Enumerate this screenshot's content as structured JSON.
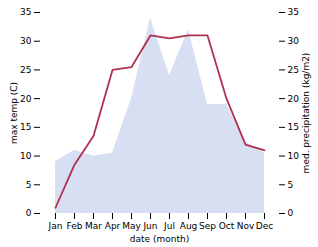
{
  "chart_data": {
    "type": "line",
    "categories": [
      "Jan",
      "Feb",
      "Mar",
      "Apr",
      "May",
      "Jun",
      "Jul",
      "Aug",
      "Sep",
      "Oct",
      "Nov",
      "Dec"
    ],
    "series": [
      {
        "type": "area",
        "color": "#b8c4e8",
        "axis": "y2",
        "values": [
          9.0,
          11.0,
          10.0,
          10.5,
          20.0,
          34.0,
          24.0,
          32.0,
          19.0,
          19.0,
          12.5,
          10.5
        ]
      },
      {
        "type": "line",
        "color": "#b03050",
        "values": [
          1.0,
          8.5,
          13.5,
          25.0,
          25.5,
          31.0,
          30.5,
          31.0,
          31.0,
          20.0,
          12.0,
          11.0
        ]
      }
    ],
    "xlabel": "date (month)",
    "ylabel": "max temp (C)",
    "y2label": "med. precipitation (kg/m2)",
    "ylim": [
      0,
      35
    ],
    "yticks": [
      0,
      5,
      10,
      15,
      20,
      25,
      30,
      35
    ],
    "y2lim": [
      0,
      35
    ],
    "y2ticks": [
      0,
      5,
      10,
      15,
      20,
      25,
      30,
      35
    ],
    "grid": false
  }
}
